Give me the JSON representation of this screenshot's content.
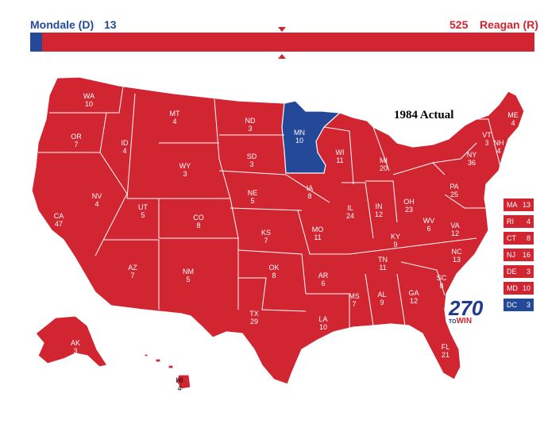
{
  "header": {
    "dem_label": "Mondale (D)",
    "dem_votes": "13",
    "rep_votes": "525",
    "rep_label": "Reagan (R)"
  },
  "totals": {
    "dem": 13,
    "rep": 525
  },
  "colors": {
    "dem": "#244999",
    "rep": "#d22532"
  },
  "map": {
    "title": "1984 Actual"
  },
  "states": [
    {
      "abbr": "WA",
      "votes": "10",
      "party": "R"
    },
    {
      "abbr": "OR",
      "votes": "7",
      "party": "R"
    },
    {
      "abbr": "CA",
      "votes": "47",
      "party": "R"
    },
    {
      "abbr": "ID",
      "votes": "4",
      "party": "R"
    },
    {
      "abbr": "NV",
      "votes": "4",
      "party": "R"
    },
    {
      "abbr": "MT",
      "votes": "4",
      "party": "R"
    },
    {
      "abbr": "WY",
      "votes": "3",
      "party": "R"
    },
    {
      "abbr": "UT",
      "votes": "5",
      "party": "R"
    },
    {
      "abbr": "AZ",
      "votes": "7",
      "party": "R"
    },
    {
      "abbr": "CO",
      "votes": "8",
      "party": "R"
    },
    {
      "abbr": "NM",
      "votes": "5",
      "party": "R"
    },
    {
      "abbr": "ND",
      "votes": "3",
      "party": "R"
    },
    {
      "abbr": "SD",
      "votes": "3",
      "party": "R"
    },
    {
      "abbr": "NE",
      "votes": "5",
      "party": "R"
    },
    {
      "abbr": "KS",
      "votes": "7",
      "party": "R"
    },
    {
      "abbr": "OK",
      "votes": "8",
      "party": "R"
    },
    {
      "abbr": "TX",
      "votes": "29",
      "party": "R"
    },
    {
      "abbr": "MN",
      "votes": "10",
      "party": "D"
    },
    {
      "abbr": "IA",
      "votes": "8",
      "party": "R"
    },
    {
      "abbr": "MO",
      "votes": "11",
      "party": "R"
    },
    {
      "abbr": "AR",
      "votes": "6",
      "party": "R"
    },
    {
      "abbr": "LA",
      "votes": "10",
      "party": "R"
    },
    {
      "abbr": "WI",
      "votes": "11",
      "party": "R"
    },
    {
      "abbr": "IL",
      "votes": "24",
      "party": "R"
    },
    {
      "abbr": "MI",
      "votes": "20",
      "party": "R"
    },
    {
      "abbr": "IN",
      "votes": "12",
      "party": "R"
    },
    {
      "abbr": "OH",
      "votes": "23",
      "party": "R"
    },
    {
      "abbr": "KY",
      "votes": "9",
      "party": "R"
    },
    {
      "abbr": "TN",
      "votes": "11",
      "party": "R"
    },
    {
      "abbr": "MS",
      "votes": "7",
      "party": "R"
    },
    {
      "abbr": "AL",
      "votes": "9",
      "party": "R"
    },
    {
      "abbr": "GA",
      "votes": "12",
      "party": "R"
    },
    {
      "abbr": "FL",
      "votes": "21",
      "party": "R"
    },
    {
      "abbr": "SC",
      "votes": "8",
      "party": "R"
    },
    {
      "abbr": "NC",
      "votes": "13",
      "party": "R"
    },
    {
      "abbr": "VA",
      "votes": "12",
      "party": "R"
    },
    {
      "abbr": "WV",
      "votes": "6",
      "party": "R"
    },
    {
      "abbr": "PA",
      "votes": "25",
      "party": "R"
    },
    {
      "abbr": "NY",
      "votes": "36",
      "party": "R"
    },
    {
      "abbr": "VT",
      "votes": "3",
      "party": "R"
    },
    {
      "abbr": "NH",
      "votes": "4",
      "party": "R"
    },
    {
      "abbr": "ME",
      "votes": "4",
      "party": "R"
    },
    {
      "abbr": "AK",
      "votes": "3",
      "party": "R"
    },
    {
      "abbr": "HI",
      "votes": "4",
      "party": "R"
    }
  ],
  "small_states": [
    {
      "abbr": "MA",
      "votes": "13",
      "party": "R"
    },
    {
      "abbr": "RI",
      "votes": "4",
      "party": "R"
    },
    {
      "abbr": "CT",
      "votes": "8",
      "party": "R"
    },
    {
      "abbr": "NJ",
      "votes": "16",
      "party": "R"
    },
    {
      "abbr": "DE",
      "votes": "3",
      "party": "R"
    },
    {
      "abbr": "MD",
      "votes": "10",
      "party": "R"
    },
    {
      "abbr": "DC",
      "votes": "3",
      "party": "D"
    }
  ],
  "logo": {
    "number": "270",
    "to": "TO",
    "win": "WIN"
  }
}
